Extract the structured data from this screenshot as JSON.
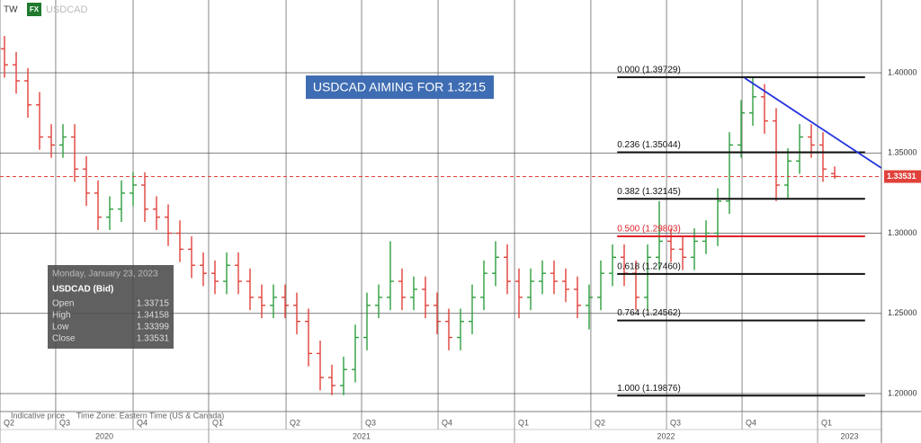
{
  "chart_data": {
    "type": "ohlc",
    "title": "USDCAD AIMING FOR 1.3215",
    "header": {
      "logo": "TW",
      "badge": "FX",
      "symbol": "USDCAD"
    },
    "footer": [
      "Indicative price",
      "Time Zone: Eastern Time (US & Canada)"
    ],
    "up_color": "#2e9e3e",
    "down_color": "#e0413a",
    "xlim": [
      -0.385,
      75.0
    ],
    "ylim": [
      1.1888,
      1.4454
    ],
    "xticks": [
      {
        "value": -0.385,
        "label": "Q2"
      },
      {
        "value": 4.38,
        "label": "Q3"
      },
      {
        "value": 11.0,
        "label": "Q4"
      },
      {
        "value": 17.46,
        "label": "Q1"
      },
      {
        "value": 24.08,
        "label": "Q2"
      },
      {
        "value": 30.54,
        "label": "Q3"
      },
      {
        "value": 37.08,
        "label": "Q4"
      },
      {
        "value": 43.62,
        "label": "Q1"
      },
      {
        "value": 50.15,
        "label": "Q2"
      },
      {
        "value": 56.62,
        "label": "Q3"
      },
      {
        "value": 63.08,
        "label": "Q4"
      },
      {
        "value": 69.54,
        "label": "Q1"
      }
    ],
    "years": [
      {
        "label": "2020",
        "start": -0.385,
        "end": 17.46
      },
      {
        "label": "2021",
        "start": 17.46,
        "end": 43.62
      },
      {
        "label": "2022",
        "start": 43.62,
        "end": 69.54
      },
      {
        "label": "2023",
        "start": 69.54,
        "end": 75.0
      }
    ],
    "yticks": [
      {
        "value": 1.2,
        "label": "1.20000"
      },
      {
        "value": 1.25,
        "label": "1.25000"
      },
      {
        "value": 1.3,
        "label": "1.30000"
      },
      {
        "value": 1.35,
        "label": "1.35000"
      },
      {
        "value": 1.4,
        "label": "1.40000"
      }
    ],
    "open": [
      1.415,
      1.405,
      1.395,
      1.38,
      1.36,
      1.355,
      1.36,
      1.34,
      1.325,
      1.31,
      1.315,
      1.325,
      1.33,
      1.315,
      1.31,
      1.3,
      1.29,
      1.28,
      1.275,
      1.27,
      1.28,
      1.27,
      1.26,
      1.255,
      1.26,
      1.255,
      1.245,
      1.225,
      1.21,
      1.205,
      1.215,
      1.235,
      1.255,
      1.26,
      1.27,
      1.26,
      1.265,
      1.255,
      1.245,
      1.235,
      1.245,
      1.26,
      1.275,
      1.285,
      1.27,
      1.26,
      1.27,
      1.275,
      1.27,
      1.265,
      1.255,
      1.26,
      1.275,
      1.285,
      1.275,
      1.26,
      1.285,
      1.295,
      1.29,
      1.285,
      1.295,
      1.3,
      1.32,
      1.355,
      1.375,
      1.385,
      1.37,
      1.33,
      1.345,
      1.36,
      1.355,
      1.33715
    ],
    "high": [
      1.423,
      1.413,
      1.403,
      1.388,
      1.368,
      1.368,
      1.368,
      1.348,
      1.333,
      1.323,
      1.333,
      1.338,
      1.338,
      1.323,
      1.318,
      1.308,
      1.298,
      1.288,
      1.283,
      1.288,
      1.288,
      1.278,
      1.268,
      1.268,
      1.268,
      1.263,
      1.253,
      1.233,
      1.218,
      1.223,
      1.243,
      1.263,
      1.268,
      1.295,
      1.278,
      1.273,
      1.273,
      1.263,
      1.253,
      1.253,
      1.268,
      1.283,
      1.295,
      1.293,
      1.278,
      1.278,
      1.283,
      1.283,
      1.278,
      1.273,
      1.268,
      1.283,
      1.293,
      1.293,
      1.283,
      1.293,
      1.32,
      1.303,
      1.298,
      1.303,
      1.308,
      1.328,
      1.363,
      1.383,
      1.397,
      1.393,
      1.378,
      1.353,
      1.368,
      1.368,
      1.363,
      1.34158
    ],
    "low": [
      1.397,
      1.387,
      1.372,
      1.352,
      1.347,
      1.347,
      1.332,
      1.317,
      1.302,
      1.302,
      1.307,
      1.317,
      1.307,
      1.302,
      1.292,
      1.282,
      1.272,
      1.267,
      1.262,
      1.262,
      1.262,
      1.252,
      1.247,
      1.247,
      1.247,
      1.237,
      1.217,
      1.202,
      1.199,
      1.199,
      1.207,
      1.227,
      1.247,
      1.252,
      1.252,
      1.252,
      1.247,
      1.237,
      1.227,
      1.227,
      1.237,
      1.252,
      1.267,
      1.262,
      1.247,
      1.252,
      1.262,
      1.262,
      1.257,
      1.247,
      1.24,
      1.252,
      1.267,
      1.267,
      1.252,
      1.252,
      1.277,
      1.282,
      1.277,
      1.277,
      1.287,
      1.292,
      1.312,
      1.347,
      1.367,
      1.362,
      1.32,
      1.322,
      1.337,
      1.347,
      1.332,
      1.33399
    ],
    "close": [
      1.405,
      1.395,
      1.38,
      1.36,
      1.355,
      1.36,
      1.34,
      1.325,
      1.31,
      1.315,
      1.325,
      1.33,
      1.315,
      1.31,
      1.3,
      1.29,
      1.28,
      1.275,
      1.27,
      1.28,
      1.27,
      1.26,
      1.255,
      1.26,
      1.255,
      1.245,
      1.225,
      1.21,
      1.205,
      1.215,
      1.235,
      1.255,
      1.26,
      1.27,
      1.26,
      1.265,
      1.255,
      1.245,
      1.235,
      1.245,
      1.26,
      1.275,
      1.285,
      1.27,
      1.26,
      1.27,
      1.275,
      1.27,
      1.265,
      1.255,
      1.26,
      1.275,
      1.285,
      1.275,
      1.26,
      1.285,
      1.295,
      1.29,
      1.285,
      1.295,
      1.3,
      1.32,
      1.355,
      1.375,
      1.385,
      1.37,
      1.33,
      1.345,
      1.36,
      1.355,
      1.34,
      1.33531
    ],
    "fib_start": 52.4,
    "fib_end": 73.6,
    "fib_levels": [
      {
        "label": "0.000 (1.39729)",
        "value": 1.39729,
        "color": "#111111"
      },
      {
        "label": "0.236 (1.35044)",
        "value": 1.35044,
        "color": "#111111"
      },
      {
        "label": "0.382 (1.32145)",
        "value": 1.32145,
        "color": "#111111"
      },
      {
        "label": "0.500 (1.29803)",
        "value": 1.29803,
        "color": "#e0202a"
      },
      {
        "label": "0.618 (1.27460)",
        "value": 1.2746,
        "color": "#111111"
      },
      {
        "label": "0.764 (1.24562)",
        "value": 1.24562,
        "color": "#111111"
      },
      {
        "label": "1.000 (1.19876)",
        "value": 1.19876,
        "color": "#111111"
      }
    ],
    "trendline": {
      "x": [
        63.31,
        75.0
      ],
      "y": [
        1.3967,
        1.3406
      ],
      "color": "#2233dd"
    },
    "current_price": 1.33531,
    "current_color": "#e0413a",
    "info": {
      "date": "Monday, January 23, 2023",
      "symbol": "USDCAD (Bid)",
      "rows": [
        {
          "label": "Open",
          "value": "1.33715"
        },
        {
          "label": "High",
          "value": "1.34158"
        },
        {
          "label": "Low",
          "value": "1.33399"
        },
        {
          "label": "Close",
          "value": "1.33531"
        }
      ]
    }
  }
}
